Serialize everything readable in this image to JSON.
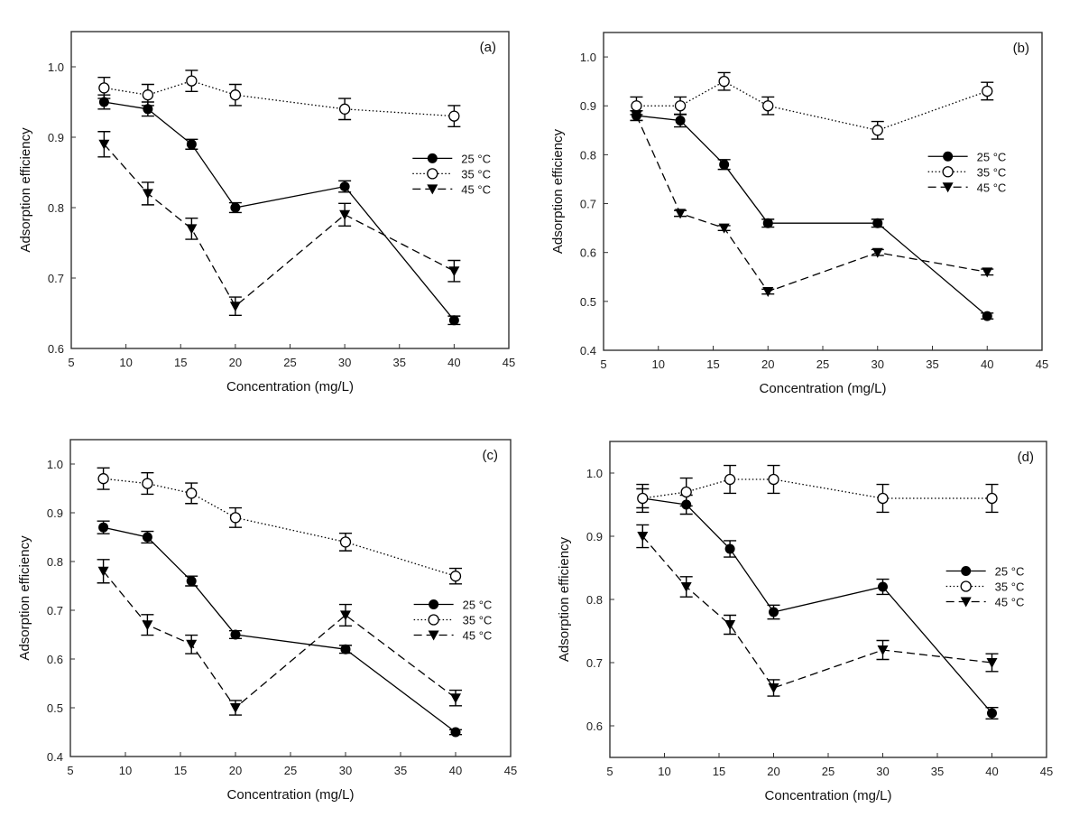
{
  "chart_data": [
    {
      "type": "line",
      "panel_label": "(a)",
      "xlabel": "Concentration (mg/L)",
      "ylabel": "Adsorption efficiency",
      "xlim": [
        5,
        45
      ],
      "ylim": [
        0.6,
        1.05
      ],
      "xticks": [
        5,
        10,
        15,
        20,
        25,
        30,
        35,
        40,
        45
      ],
      "yticks": [
        "0.6",
        "0.7",
        "0.8",
        "0.9",
        "1.0"
      ],
      "grid": false,
      "legend": "right",
      "x": [
        8,
        12,
        16,
        20,
        30,
        40
      ],
      "series": [
        {
          "name": "25 °C",
          "values": [
            0.95,
            0.94,
            0.89,
            0.8,
            0.83,
            0.64
          ],
          "errors": [
            0.01,
            0.01,
            0.007,
            0.007,
            0.008,
            0.006
          ]
        },
        {
          "name": "35 °C",
          "values": [
            0.97,
            0.96,
            0.98,
            0.96,
            0.94,
            0.93
          ],
          "errors": [
            0.015,
            0.015,
            0.015,
            0.015,
            0.015,
            0.015
          ]
        },
        {
          "name": "45 °C",
          "values": [
            0.89,
            0.82,
            0.77,
            0.66,
            0.79,
            0.71
          ],
          "errors": [
            0.018,
            0.016,
            0.015,
            0.013,
            0.016,
            0.015
          ]
        }
      ]
    },
    {
      "type": "line",
      "panel_label": "(b)",
      "xlabel": "Concentration (mg/L)",
      "ylabel": "Adsorption efficiency",
      "xlim": [
        5,
        45
      ],
      "ylim": [
        0.4,
        1.05
      ],
      "xticks": [
        5,
        10,
        15,
        20,
        25,
        30,
        35,
        40,
        45
      ],
      "yticks": [
        "0.4",
        "0.5",
        "0.6",
        "0.7",
        "0.8",
        "0.9",
        "1.0"
      ],
      "grid": false,
      "legend": "right",
      "x": [
        8,
        12,
        16,
        20,
        30,
        40
      ],
      "series": [
        {
          "name": "25 °C",
          "values": [
            0.88,
            0.87,
            0.78,
            0.66,
            0.66,
            0.47
          ],
          "errors": [
            0.01,
            0.013,
            0.01,
            0.008,
            0.008,
            0.006
          ]
        },
        {
          "name": "35 °C",
          "values": [
            0.9,
            0.9,
            0.95,
            0.9,
            0.85,
            0.93
          ],
          "errors": [
            0.018,
            0.018,
            0.018,
            0.018,
            0.018,
            0.018
          ]
        },
        {
          "name": "45 °C",
          "values": [
            0.88,
            0.68,
            0.65,
            0.52,
            0.6,
            0.56
          ],
          "errors": [
            0.01,
            0.006,
            0.005,
            0.005,
            0.006,
            0.006
          ]
        }
      ]
    },
    {
      "type": "line",
      "panel_label": "(c)",
      "xlabel": "Concentration (mg/L)",
      "ylabel": "Adsorption efficiency",
      "xlim": [
        5,
        45
      ],
      "ylim": [
        0.4,
        1.05
      ],
      "xticks": [
        5,
        10,
        15,
        20,
        25,
        30,
        35,
        40,
        45
      ],
      "yticks": [
        "0.4",
        "0.5",
        "0.6",
        "0.7",
        "0.8",
        "0.9",
        "1.0"
      ],
      "grid": false,
      "legend": "right",
      "x": [
        8,
        12,
        16,
        20,
        30,
        40
      ],
      "series": [
        {
          "name": "25 °C",
          "values": [
            0.87,
            0.85,
            0.76,
            0.65,
            0.62,
            0.45
          ],
          "errors": [
            0.013,
            0.012,
            0.01,
            0.008,
            0.008,
            0.005
          ]
        },
        {
          "name": "35 °C",
          "values": [
            0.97,
            0.96,
            0.94,
            0.89,
            0.84,
            0.77
          ],
          "errors": [
            0.022,
            0.022,
            0.021,
            0.02,
            0.018,
            0.016
          ]
        },
        {
          "name": "45 °C",
          "values": [
            0.78,
            0.67,
            0.63,
            0.5,
            0.69,
            0.52
          ],
          "errors": [
            0.024,
            0.021,
            0.019,
            0.015,
            0.022,
            0.016
          ]
        }
      ]
    },
    {
      "type": "line",
      "panel_label": "(d)",
      "xlabel": "Concentration (mg/L)",
      "ylabel": "Adsorption efficiency",
      "xlim": [
        5,
        45
      ],
      "ylim": [
        0.55,
        1.05
      ],
      "xticks": [
        5,
        10,
        15,
        20,
        25,
        30,
        35,
        40,
        45
      ],
      "yticks": [
        "0.6",
        "0.7",
        "0.8",
        "0.9",
        "1.0"
      ],
      "grid": false,
      "legend": "right",
      "x": [
        8,
        12,
        16,
        20,
        30,
        40
      ],
      "series": [
        {
          "name": "25 °C",
          "values": [
            0.96,
            0.95,
            0.88,
            0.78,
            0.82,
            0.62
          ],
          "errors": [
            0.015,
            0.015,
            0.013,
            0.011,
            0.012,
            0.009
          ]
        },
        {
          "name": "35 °C",
          "values": [
            0.96,
            0.97,
            0.99,
            0.99,
            0.96,
            0.96
          ],
          "errors": [
            0.022,
            0.022,
            0.022,
            0.022,
            0.022,
            0.022
          ]
        },
        {
          "name": "45 °C",
          "values": [
            0.9,
            0.82,
            0.76,
            0.66,
            0.72,
            0.7
          ],
          "errors": [
            0.018,
            0.016,
            0.015,
            0.013,
            0.015,
            0.014
          ]
        }
      ]
    }
  ],
  "series_styles": {
    "25 °C": {
      "line": "solid",
      "marker": "filled-circle",
      "color": "#000000"
    },
    "35 °C": {
      "line": "dotted",
      "marker": "open-circle",
      "color": "#000000"
    },
    "45 °C": {
      "line": "dashed",
      "marker": "filled-down-triangle",
      "color": "#000000"
    }
  }
}
